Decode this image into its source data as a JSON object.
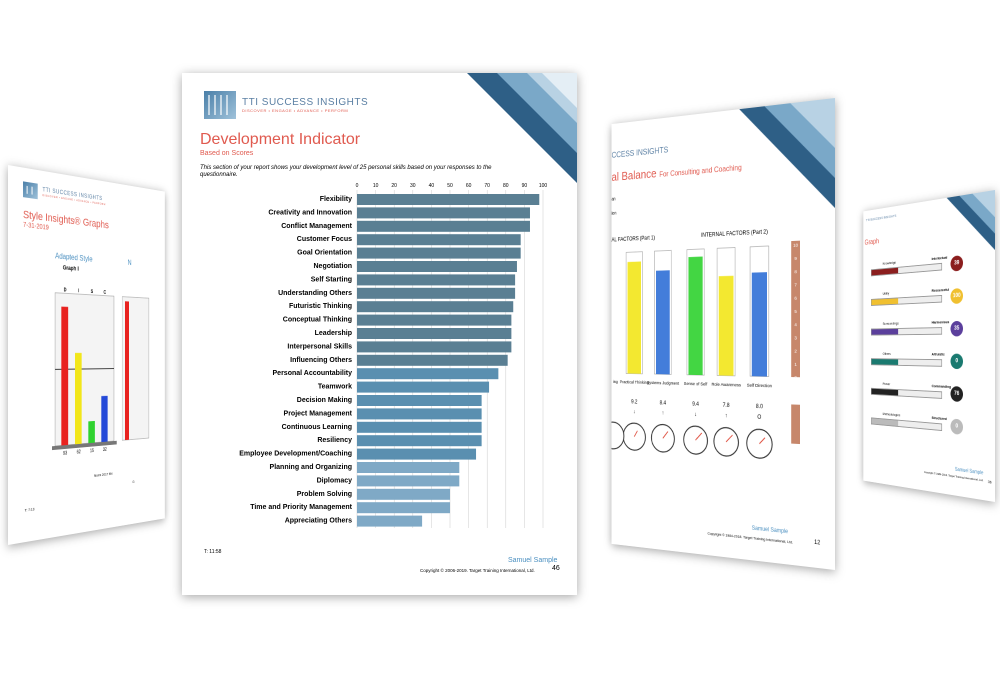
{
  "brand": {
    "name": "TTI SUCCESS INSIGHTS",
    "tagline": "DISCOVER • ENGAGE • ADVANCE • PERFORM"
  },
  "page_left": {
    "title": "Style Insights® Graphs",
    "date": "7-31-2019",
    "graph_heading": "Adapted Style",
    "graph_sub": "Graph I",
    "next_heading_partial": "N",
    "columns": [
      "D",
      "I",
      "S",
      "C"
    ],
    "values": [
      93,
      62,
      15,
      32
    ],
    "colors": [
      "#e8221f",
      "#f2e61a",
      "#2fd22f",
      "#2449d8"
    ],
    "norm": "Norm 2017 R4",
    "time": "T: 7:13",
    "partial_c": "G"
  },
  "page_mid": {
    "title": "Development Indicator",
    "subtitle": "Based on Scores",
    "intro": "This section of your report shows your development level of 25 personal skills based on your responses to the questionnaire.",
    "axis_ticks": [
      "0",
      "10",
      "20",
      "30",
      "40",
      "50",
      "60",
      "70",
      "80",
      "90",
      "100"
    ],
    "skills": [
      {
        "label": "Flexibility",
        "value": 98
      },
      {
        "label": "Creativity and Innovation",
        "value": 93
      },
      {
        "label": "Conflict Management",
        "value": 93
      },
      {
        "label": "Customer Focus",
        "value": 88
      },
      {
        "label": "Goal Orientation",
        "value": 88
      },
      {
        "label": "Negotiation",
        "value": 86
      },
      {
        "label": "Self Starting",
        "value": 85
      },
      {
        "label": "Understanding Others",
        "value": 85
      },
      {
        "label": "Futuristic Thinking",
        "value": 84
      },
      {
        "label": "Conceptual Thinking",
        "value": 83
      },
      {
        "label": "Leadership",
        "value": 83
      },
      {
        "label": "Interpersonal Skills",
        "value": 83
      },
      {
        "label": "Influencing Others",
        "value": 81
      },
      {
        "label": "Personal Accountability",
        "value": 76
      },
      {
        "label": "Teamwork",
        "value": 71
      },
      {
        "label": "Decision Making",
        "value": 67
      },
      {
        "label": "Project Management",
        "value": 67
      },
      {
        "label": "Continuous Learning",
        "value": 67
      },
      {
        "label": "Resiliency",
        "value": 67
      },
      {
        "label": "Employee Development/Coaching",
        "value": 64
      },
      {
        "label": "Planning and Organizing",
        "value": 55
      },
      {
        "label": "Diplomacy",
        "value": 55
      },
      {
        "label": "Problem Solving",
        "value": 50
      },
      {
        "label": "Time and Priority Management",
        "value": 50
      },
      {
        "label": "Appreciating Others",
        "value": 35
      }
    ],
    "time": "T: 11:58",
    "name": "Samuel Sample",
    "copyright": "Copyright © 2006-2019. Target Training International, Ltd.",
    "page_no": "46"
  },
  "page_right": {
    "title": "al Balance",
    "title_suffix": "For Consulting and Coaching",
    "brand_partial": "CCESS INSIGHTS",
    "left_fragments": [
      "an",
      "ion"
    ],
    "ext_label": "AL FACTORS (Part 1)",
    "int_label": "INTERNAL FACTORS (Part 2)",
    "scale": [
      "10",
      "9",
      "8",
      "7",
      "6",
      "5",
      "4",
      "3",
      "2",
      "1",
      "0"
    ],
    "columns": [
      {
        "label": "Practical Thinking",
        "value": "9.2",
        "color": "#f2e61a",
        "arrow": "↓"
      },
      {
        "label": "Systems Judgment",
        "value": "8.4",
        "color": "#2f6fd6",
        "arrow": "↑"
      },
      {
        "label": "Sense of Self",
        "value": "9.4",
        "color": "#2fd22f",
        "arrow": "↓"
      },
      {
        "label": "Role Awareness",
        "value": "7.8",
        "color": "#f2e61a",
        "arrow": "↑"
      },
      {
        "label": "Self Direction",
        "value": "8.0",
        "color": "#2f6fd6",
        "arrow": "O"
      }
    ],
    "first_fragment": "ing",
    "name": "Samuel Sample",
    "copyright": "Copyright © 1984-2018. Target Training International, Ltd.",
    "page_no": "12"
  },
  "page_far": {
    "title_partial": "Graph",
    "ticks": [
      "0",
      "25",
      "50",
      "75",
      "100"
    ],
    "rows": [
      {
        "left": "Knowledge",
        "right": "Intellectual",
        "score": "39",
        "color": "#8b1e1e"
      },
      {
        "left": "Utility",
        "right": "Resourceful",
        "score": "100",
        "color": "#f0c030"
      },
      {
        "left": "Surroundings",
        "right": "Harmonious",
        "score": "35",
        "color": "#5b3f9c"
      },
      {
        "left": "Others",
        "right": "Altruistic",
        "score": "0",
        "color": "#1a7a70"
      },
      {
        "left": "Power",
        "right": "Commanding",
        "score": "76",
        "color": "#222222"
      },
      {
        "left": "Methodologies",
        "right": "Structured",
        "score": "0",
        "color": "#bbbbbb"
      }
    ],
    "name": "Samuel Sample",
    "copyright": "Copyright © 1984-2019. Target Training International, Ltd.",
    "page_no": "36"
  }
}
